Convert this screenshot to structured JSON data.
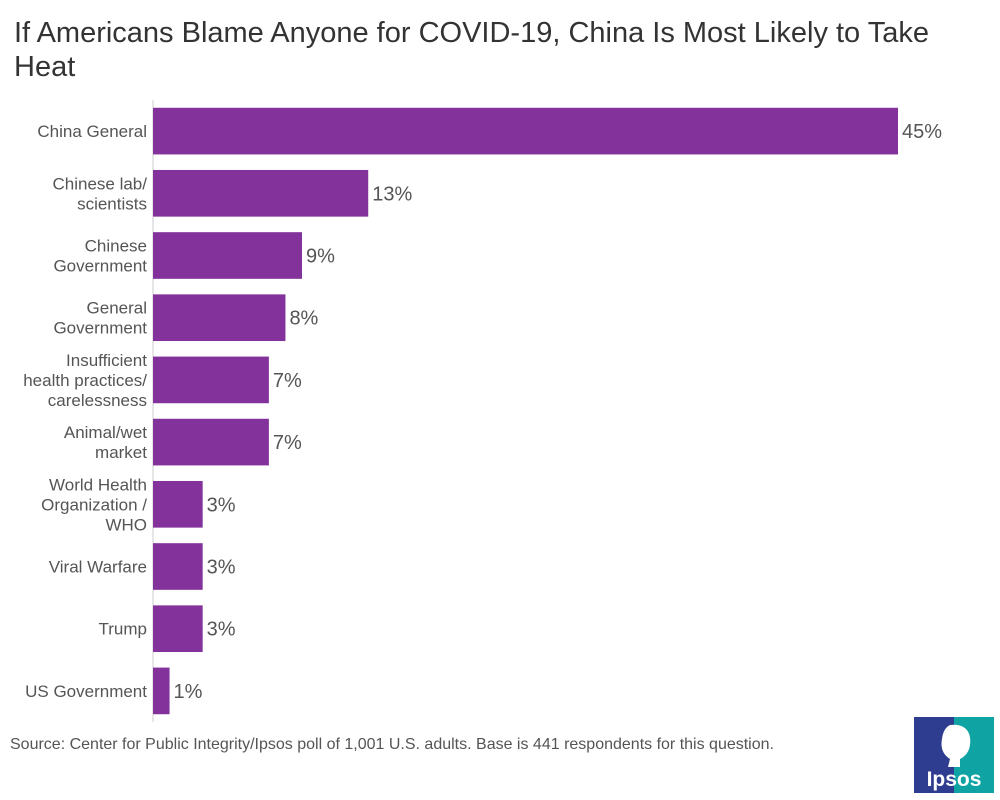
{
  "title": "If Americans Blame Anyone for COVID-19, China Is Most Likely to Take Heat",
  "source": "Source: Center for Public Integrity/Ipsos poll of 1,001 U.S. adults. Base is 441 respondents for this question.",
  "logo": {
    "text": "Ipsos",
    "icon": "ipsos-logo"
  },
  "colors": {
    "bar": "#82329a",
    "text": "#555555",
    "axis": "#cccccc"
  },
  "chart_data": {
    "type": "bar",
    "orientation": "horizontal",
    "categories": [
      [
        "China General"
      ],
      [
        "Chinese lab/",
        "scientists"
      ],
      [
        "Chinese",
        "Government"
      ],
      [
        "General",
        "Government"
      ],
      [
        "Insufficient",
        "health practices/",
        "carelessness"
      ],
      [
        "Animal/wet",
        "market"
      ],
      [
        "World Health",
        "Organization /",
        "WHO"
      ],
      [
        "Viral Warfare"
      ],
      [
        "Trump"
      ],
      [
        "US Government"
      ]
    ],
    "values": [
      45,
      13,
      9,
      8,
      7,
      7,
      3,
      3,
      3,
      1
    ],
    "value_labels": [
      "45%",
      "13%",
      "9%",
      "8%",
      "7%",
      "7%",
      "3%",
      "3%",
      "3%",
      "1%"
    ],
    "xlim": [
      0,
      45
    ],
    "grid": false,
    "legend": "none"
  }
}
